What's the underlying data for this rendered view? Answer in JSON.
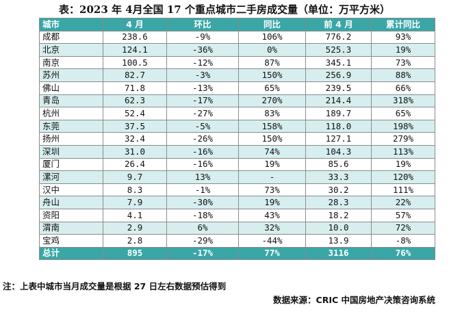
{
  "title": "表：2023 年 4月全国 17 个重点城市二手房成交量（单位：万平方米）",
  "headers": [
    "城市",
    "4 月",
    "环比",
    "同比",
    "前 4 月",
    "累计同比"
  ],
  "rows": [
    [
      "成都",
      "238.6",
      "-9%",
      "106%",
      "776.2",
      "93%"
    ],
    [
      "北京",
      "124.1",
      "-36%",
      "0%",
      "525.3",
      "19%"
    ],
    [
      "南京",
      "100.5",
      "-12%",
      "87%",
      "345.1",
      "73%"
    ],
    [
      "苏州",
      "82.7",
      "-3%",
      "150%",
      "256.9",
      "88%"
    ],
    [
      "佛山",
      "71.8",
      "-13%",
      "65%",
      "239.5",
      "66%"
    ],
    [
      "青岛",
      "62.3",
      "-17%",
      "270%",
      "214.4",
      "318%"
    ],
    [
      "杭州",
      "52.4",
      "-27%",
      "83%",
      "189.7",
      "65%"
    ],
    [
      "东莞",
      "37.5",
      "-5%",
      "158%",
      "118.0",
      "198%"
    ],
    [
      "扬州",
      "32.4",
      "-26%",
      "150%",
      "127.1",
      "279%"
    ],
    [
      "深圳",
      "31.0",
      "-16%",
      "74%",
      "104.3",
      "113%"
    ],
    [
      "厦门",
      "26.4",
      "-16%",
      "19%",
      "85.6",
      "19%"
    ],
    [
      "漯河",
      "9.7",
      "13%",
      "-",
      "33.3",
      "120%"
    ],
    [
      "汉中",
      "8.3",
      "-1%",
      "73%",
      "30.2",
      "111%"
    ],
    [
      "舟山",
      "7.9",
      "-30%",
      "19%",
      "28.3",
      "22%"
    ],
    [
      "资阳",
      "4.1",
      "-18%",
      "43%",
      "18.2",
      "57%"
    ],
    [
      "渭南",
      "2.9",
      "6%",
      "32%",
      "10.0",
      "72%"
    ],
    [
      "宝鸡",
      "2.8",
      "-29%",
      "-44%",
      "13.9",
      "-8%"
    ]
  ],
  "total": [
    "总计",
    "895",
    "-17%",
    "77%",
    "3116",
    "76%"
  ],
  "note": "注：上表中城市当月成交量是根据 27 日左右数据预估得到",
  "source": "数据来源：CRIC 中国房地产决策咨询系统"
}
